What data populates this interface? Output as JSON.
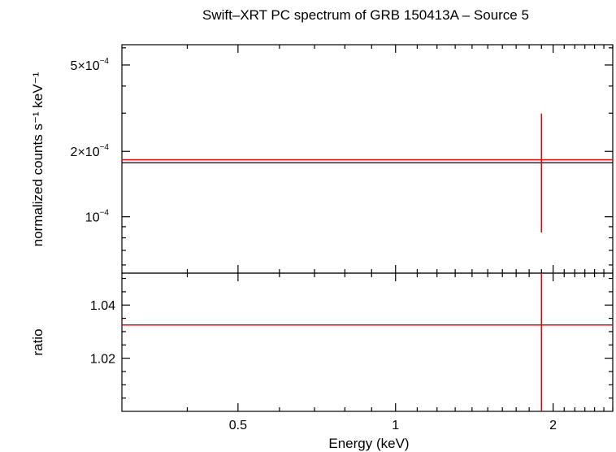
{
  "chart_data": [
    {
      "panel": "top",
      "type": "scatter",
      "title": "Swift–XRT PC spectrum of GRB 150413A – Source 5",
      "xscale": "log",
      "yscale": "log",
      "xlim": [
        0.3,
        2.6
      ],
      "ylim": [
        5.5e-05,
        0.00062
      ],
      "ylabel": "normalized counts s⁻¹ keV⁻¹",
      "yticks": [
        {
          "value": 0.0005,
          "mantissa": "5×10",
          "exponent": "−4"
        },
        {
          "value": 0.0002,
          "mantissa": "2×10",
          "exponent": "−4"
        },
        {
          "value": 0.0001,
          "mantissa": "10",
          "exponent": "−4"
        }
      ],
      "series": [
        {
          "color": "#ee0000",
          "points": [
            {
              "x": 1.9,
              "y": 0.000183,
              "xerr": [
                0.3,
                2.6
              ],
              "yerr": [
                8.46e-05,
                0.000299
              ]
            }
          ]
        }
      ],
      "model": {
        "color": "#000000",
        "x": [
          0.3,
          2.6
        ],
        "y": [
          0.0001775,
          0.0001775
        ]
      }
    },
    {
      "panel": "bottom",
      "type": "scatter",
      "xscale": "log",
      "xlim": [
        0.3,
        2.6
      ],
      "ylim": [
        1.0,
        1.052
      ],
      "xlabel": "Energy (keV)",
      "ylabel": "ratio",
      "xticks": [
        {
          "value": 0.5,
          "label": "0.5"
        },
        {
          "value": 1,
          "label": "1"
        },
        {
          "value": 2,
          "label": "2"
        }
      ],
      "yticks": [
        {
          "value": 1.04,
          "label": "1.04"
        },
        {
          "value": 1.02,
          "label": "1.02"
        }
      ],
      "series": [
        {
          "color": "#ee0000",
          "points": [
            {
              "x": 1.9,
              "y": 1.0325,
              "xerr": [
                0.3,
                2.6
              ],
              "yerr": [
                1.0,
                1.052
              ]
            }
          ]
        }
      ]
    }
  ]
}
